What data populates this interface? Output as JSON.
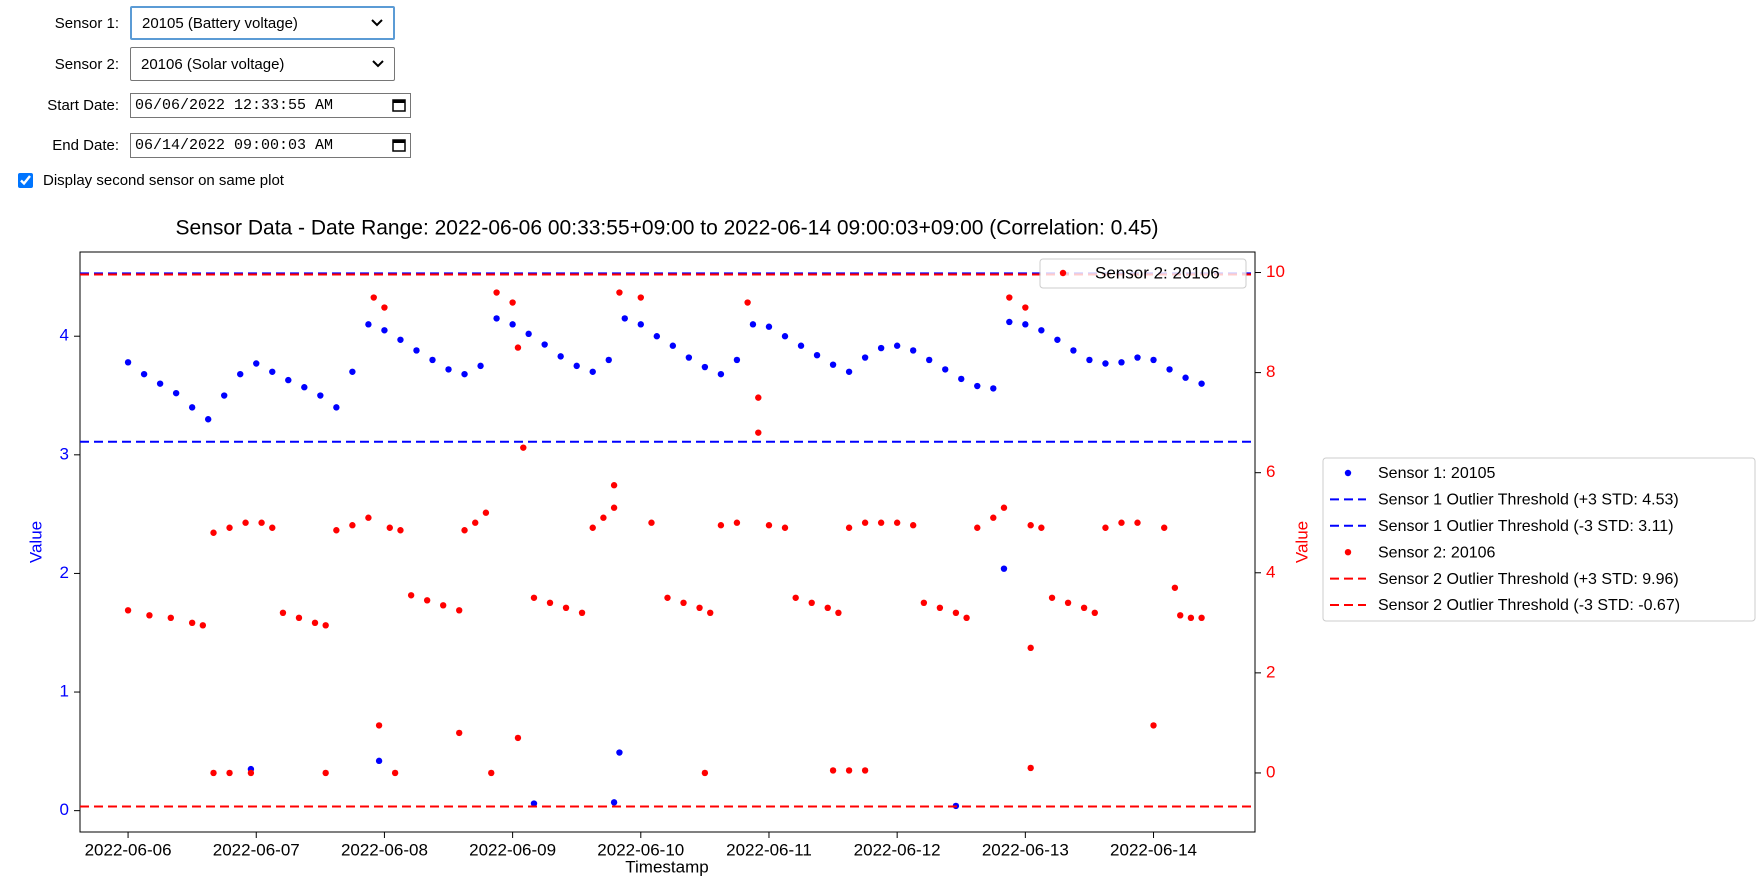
{
  "form": {
    "fields": [
      {
        "label": "Sensor 1:",
        "value": "20105 (Battery voltage)"
      },
      {
        "label": "Sensor 2:",
        "value": "20106 (Solar voltage)"
      },
      {
        "label": "Start Date:",
        "value": "06/06/2022 12:33:55 AM"
      },
      {
        "label": "End Date:",
        "value": "06/14/2022 09:00:03 AM"
      }
    ],
    "checkbox": {
      "label": "Display second sensor on same plot",
      "checked": true
    }
  },
  "chart_data": {
    "type": "scatter",
    "title": "Sensor Data - Date Range: 2022-06-06 00:33:55+09:00 to 2022-06-14 09:00:03+09:00 (Correlation: 0.45)",
    "x_label": "Timestamp",
    "y_label": "Value",
    "y2_label": "Value",
    "xlim": [
      "2022-06-05 15:00",
      "2022-06-14 19:00"
    ],
    "xticks": [
      "2022-06-06",
      "2022-06-07",
      "2022-06-08",
      "2022-06-09",
      "2022-06-10",
      "2022-06-11",
      "2022-06-12",
      "2022-06-13",
      "2022-06-14"
    ],
    "ylim": [
      -0.18,
      4.71
    ],
    "yticks": [
      0,
      1,
      2,
      3,
      4
    ],
    "y2lim": [
      -1.18,
      10.41
    ],
    "y2ticks": [
      0,
      2,
      4,
      6,
      8,
      10
    ],
    "series": [
      {
        "name": "Sensor 1: 20105",
        "color": "#0000ff",
        "axis": "y",
        "x": [
          "2022-06-06 00:00",
          "2022-06-06 03:00",
          "2022-06-06 06:00",
          "2022-06-06 09:00",
          "2022-06-06 12:00",
          "2022-06-06 15:00",
          "2022-06-06 18:00",
          "2022-06-06 21:00",
          "2022-06-07 00:00",
          "2022-06-07 03:00",
          "2022-06-07 06:00",
          "2022-06-07 09:00",
          "2022-06-07 12:00",
          "2022-06-07 15:00",
          "2022-06-07 18:00",
          "2022-06-07 21:00",
          "2022-06-08 00:00",
          "2022-06-08 03:00",
          "2022-06-08 06:00",
          "2022-06-08 09:00",
          "2022-06-08 12:00",
          "2022-06-08 15:00",
          "2022-06-08 18:00",
          "2022-06-08 21:00",
          "2022-06-09 00:00",
          "2022-06-09 03:00",
          "2022-06-09 06:00",
          "2022-06-09 09:00",
          "2022-06-09 12:00",
          "2022-06-09 15:00",
          "2022-06-09 18:00",
          "2022-06-09 21:00",
          "2022-06-10 00:00",
          "2022-06-10 03:00",
          "2022-06-10 06:00",
          "2022-06-10 09:00",
          "2022-06-10 12:00",
          "2022-06-10 15:00",
          "2022-06-10 18:00",
          "2022-06-10 21:00",
          "2022-06-11 00:00",
          "2022-06-11 03:00",
          "2022-06-11 06:00",
          "2022-06-11 09:00",
          "2022-06-11 12:00",
          "2022-06-11 15:00",
          "2022-06-11 18:00",
          "2022-06-11 21:00",
          "2022-06-12 00:00",
          "2022-06-12 03:00",
          "2022-06-12 06:00",
          "2022-06-12 09:00",
          "2022-06-12 12:00",
          "2022-06-12 15:00",
          "2022-06-12 18:00",
          "2022-06-12 21:00",
          "2022-06-13 00:00",
          "2022-06-13 03:00",
          "2022-06-13 06:00",
          "2022-06-13 09:00",
          "2022-06-13 12:00",
          "2022-06-13 15:00",
          "2022-06-13 18:00",
          "2022-06-13 21:00",
          "2022-06-14 00:00",
          "2022-06-14 03:00",
          "2022-06-14 06:00",
          "2022-06-14 09:00",
          "2022-06-06 23:00",
          "2022-06-07 23:00",
          "2022-06-09 04:00",
          "2022-06-09 19:00",
          "2022-06-09 20:00",
          "2022-06-12 11:00",
          "2022-06-12 20:00"
        ],
        "values": [
          3.78,
          3.68,
          3.6,
          3.52,
          3.4,
          3.3,
          3.5,
          3.68,
          3.77,
          3.7,
          3.63,
          3.57,
          3.5,
          3.4,
          3.7,
          4.1,
          4.05,
          3.97,
          3.88,
          3.8,
          3.72,
          3.68,
          3.75,
          4.15,
          4.1,
          4.02,
          3.93,
          3.83,
          3.75,
          3.7,
          3.8,
          4.15,
          4.1,
          4.0,
          3.92,
          3.82,
          3.74,
          3.68,
          3.8,
          4.1,
          4.08,
          4.0,
          3.92,
          3.84,
          3.76,
          3.7,
          3.82,
          3.9,
          3.92,
          3.88,
          3.8,
          3.72,
          3.64,
          3.58,
          3.56,
          4.12,
          4.1,
          4.05,
          3.97,
          3.88,
          3.8,
          3.77,
          3.78,
          3.82,
          3.8,
          3.72,
          3.65,
          3.6,
          0.35,
          0.42,
          0.06,
          0.07,
          0.49,
          0.04,
          2.04
        ]
      },
      {
        "name": "Sensor 2: 20106",
        "color": "#ff0000",
        "axis": "y2",
        "x": [
          "2022-06-06 00:00",
          "2022-06-06 04:00",
          "2022-06-06 08:00",
          "2022-06-06 12:00",
          "2022-06-06 14:00",
          "2022-06-06 16:00",
          "2022-06-06 19:00",
          "2022-06-06 22:00",
          "2022-06-07 01:00",
          "2022-06-07 03:00",
          "2022-06-07 05:00",
          "2022-06-07 08:00",
          "2022-06-07 11:00",
          "2022-06-07 13:00",
          "2022-06-07 15:00",
          "2022-06-07 18:00",
          "2022-06-07 21:00",
          "2022-06-07 22:00",
          "2022-06-08 00:00",
          "2022-06-08 01:00",
          "2022-06-08 03:00",
          "2022-06-08 05:00",
          "2022-06-08 08:00",
          "2022-06-08 11:00",
          "2022-06-08 14:00",
          "2022-06-08 15:00",
          "2022-06-08 17:00",
          "2022-06-08 19:00",
          "2022-06-08 21:00",
          "2022-06-09 00:00",
          "2022-06-09 01:00",
          "2022-06-09 02:00",
          "2022-06-09 04:00",
          "2022-06-09 07:00",
          "2022-06-09 10:00",
          "2022-06-09 13:00",
          "2022-06-09 15:00",
          "2022-06-09 17:00",
          "2022-06-09 19:00",
          "2022-06-09 20:00",
          "2022-06-10 00:00",
          "2022-06-10 02:00",
          "2022-06-10 05:00",
          "2022-06-10 08:00",
          "2022-06-10 11:00",
          "2022-06-10 13:00",
          "2022-06-10 15:00",
          "2022-06-10 18:00",
          "2022-06-10 20:00",
          "2022-06-10 22:00",
          "2022-06-11 00:00",
          "2022-06-11 03:00",
          "2022-06-11 05:00",
          "2022-06-11 08:00",
          "2022-06-11 11:00",
          "2022-06-11 13:00",
          "2022-06-11 15:00",
          "2022-06-11 18:00",
          "2022-06-11 21:00",
          "2022-06-12 00:00",
          "2022-06-12 03:00",
          "2022-06-12 05:00",
          "2022-06-12 08:00",
          "2022-06-12 11:00",
          "2022-06-12 13:00",
          "2022-06-12 15:00",
          "2022-06-12 18:00",
          "2022-06-12 20:00",
          "2022-06-12 21:00",
          "2022-06-13 00:00",
          "2022-06-13 01:00",
          "2022-06-13 03:00",
          "2022-06-13 05:00",
          "2022-06-13 08:00",
          "2022-06-13 11:00",
          "2022-06-13 13:00",
          "2022-06-13 15:00",
          "2022-06-13 18:00",
          "2022-06-13 21:00",
          "2022-06-14 02:00",
          "2022-06-14 04:00",
          "2022-06-14 05:00",
          "2022-06-14 07:00",
          "2022-06-14 09:00",
          "2022-06-06 16:00",
          "2022-06-06 19:00",
          "2022-06-06 23:00",
          "2022-06-07 13:00",
          "2022-06-07 23:00",
          "2022-06-08 02:00",
          "2022-06-08 14:00",
          "2022-06-08 20:00",
          "2022-06-09 01:00",
          "2022-06-09 19:00",
          "2022-06-10 12:00",
          "2022-06-10 22:00",
          "2022-06-11 12:00",
          "2022-06-11 15:00",
          "2022-06-11 18:00",
          "2022-06-13 01:00",
          "2022-06-13 01:00",
          "2022-06-14 00:00"
        ],
        "values": [
          3.25,
          3.15,
          3.1,
          3.0,
          2.95,
          4.8,
          4.9,
          5.0,
          5.0,
          4.9,
          3.2,
          3.1,
          3.0,
          2.95,
          4.85,
          4.95,
          5.1,
          9.5,
          9.3,
          4.9,
          4.85,
          3.55,
          3.45,
          3.35,
          3.25,
          4.85,
          5.0,
          5.2,
          9.6,
          9.4,
          8.5,
          6.5,
          3.5,
          3.4,
          3.3,
          3.2,
          4.9,
          5.1,
          5.3,
          9.6,
          9.5,
          5.0,
          3.5,
          3.4,
          3.3,
          3.2,
          4.95,
          5.0,
          9.4,
          6.8,
          4.95,
          4.9,
          3.5,
          3.4,
          3.3,
          3.2,
          4.9,
          5.0,
          5.0,
          5.0,
          4.95,
          3.4,
          3.3,
          3.2,
          3.1,
          4.9,
          5.1,
          5.3,
          9.5,
          9.3,
          4.95,
          4.9,
          3.5,
          3.4,
          3.3,
          3.2,
          4.9,
          5.0,
          5.0,
          4.9,
          3.7,
          3.15,
          3.1,
          3.1,
          0.0,
          0.0,
          0.0,
          0.0,
          0.95,
          0.0,
          0.8,
          0.0,
          0.7,
          5.75,
          0.0,
          7.5,
          0.05,
          0.05,
          0.05,
          2.5,
          0.1,
          0.95
        ]
      }
    ],
    "thresholds": [
      {
        "name": "Sensor 1 Outlier Threshold (+3 STD: 4.53)",
        "value": 4.53,
        "color": "#0000ff",
        "axis": "y"
      },
      {
        "name": "Sensor 1 Outlier Threshold (-3 STD: 3.11)",
        "value": 3.11,
        "color": "#0000ff",
        "axis": "y"
      },
      {
        "name": "Sensor 2 Outlier Threshold (+3 STD: 9.96)",
        "value": 9.96,
        "color": "#ff0000",
        "axis": "y2"
      },
      {
        "name": "Sensor 2 Outlier Threshold (-3 STD: -0.67)",
        "value": -0.67,
        "color": "#ff0000",
        "axis": "y2"
      }
    ]
  }
}
